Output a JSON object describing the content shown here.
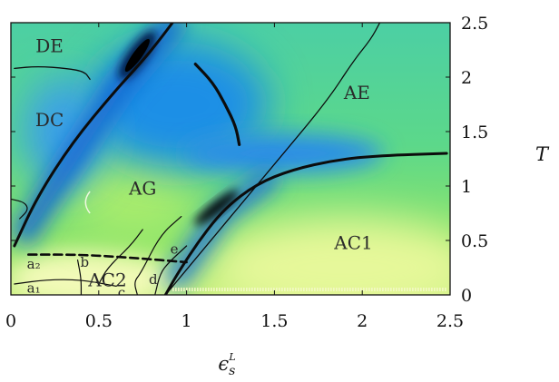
{
  "chart_data": {
    "type": "heatmap",
    "title": "",
    "xlabel": "ε_s^L",
    "ylabel": "T",
    "xlim": [
      0,
      2.5
    ],
    "ylim": [
      0,
      2.5
    ],
    "x_ticks": [
      0,
      0.5,
      1,
      1.5,
      2,
      2.5
    ],
    "x_tick_labels": [
      "0",
      "0.5",
      "1",
      "1.5",
      "2",
      "2.5"
    ],
    "y_ticks": [
      0,
      0.5,
      1,
      1.5,
      2,
      2.5
    ],
    "y_tick_labels": [
      "0",
      "0.5",
      "1",
      "1.5",
      "2",
      "2.5"
    ],
    "y_axis_side": "right",
    "grid": false,
    "legend": "none",
    "colormap": [
      "#ffffff",
      "#c8f080",
      "#7ee85a",
      "#3ccf96",
      "#1a8fe0",
      "#0a2a90",
      "#000000"
    ],
    "regions": [
      {
        "label": "DE",
        "x": 0.22,
        "y": 2.23
      },
      {
        "label": "DC",
        "x": 0.22,
        "y": 1.55
      },
      {
        "label": "AG",
        "x": 0.75,
        "y": 0.92
      },
      {
        "label": "AE",
        "x": 1.97,
        "y": 1.8
      },
      {
        "label": "AC1",
        "x": 1.95,
        "y": 0.42
      },
      {
        "label": "AC2",
        "x": 0.55,
        "y": 0.08
      },
      {
        "label": "a₁",
        "x": 0.13,
        "y": 0.02
      },
      {
        "label": "a₂",
        "x": 0.13,
        "y": 0.24
      },
      {
        "label": "b",
        "x": 0.42,
        "y": 0.26
      },
      {
        "label": "c",
        "x": 0.63,
        "y": -0.02
      },
      {
        "label": "d",
        "x": 0.81,
        "y": 0.1
      },
      {
        "label": "e",
        "x": 0.93,
        "y": 0.38
      }
    ],
    "boundaries": [
      {
        "name": "upper-boundary-thick",
        "width": 3,
        "points": [
          [
            0.02,
            0.45
          ],
          [
            0.15,
            0.9
          ],
          [
            0.35,
            1.4
          ],
          [
            0.58,
            1.85
          ],
          [
            0.75,
            2.15
          ],
          [
            0.85,
            2.35
          ],
          [
            0.92,
            2.5
          ]
        ]
      },
      {
        "name": "lower-boundary-thick",
        "width": 3,
        "points": [
          [
            0.88,
            0.0
          ],
          [
            0.95,
            0.2
          ],
          [
            1.08,
            0.52
          ],
          [
            1.22,
            0.8
          ],
          [
            1.4,
            1.02
          ],
          [
            1.6,
            1.15
          ],
          [
            1.85,
            1.24
          ],
          [
            2.1,
            1.28
          ],
          [
            2.48,
            1.3
          ]
        ]
      },
      {
        "name": "ae-boundary-thin",
        "width": 1.3,
        "points": [
          [
            0.88,
            0.0
          ],
          [
            1.2,
            0.62
          ],
          [
            1.5,
            1.2
          ],
          [
            1.8,
            1.78
          ],
          [
            1.95,
            2.15
          ],
          [
            2.05,
            2.35
          ],
          [
            2.1,
            2.5
          ]
        ]
      },
      {
        "name": "isolated-segment",
        "width": 3.2,
        "points": [
          [
            1.05,
            2.12
          ],
          [
            1.15,
            1.95
          ],
          [
            1.22,
            1.75
          ],
          [
            1.28,
            1.55
          ],
          [
            1.3,
            1.38
          ]
        ]
      },
      {
        "name": "de-dc-boundary",
        "width": 1.3,
        "points": [
          [
            0.02,
            2.08
          ],
          [
            0.15,
            2.1
          ],
          [
            0.32,
            2.08
          ],
          [
            0.42,
            2.05
          ],
          [
            0.45,
            1.98
          ]
        ]
      },
      {
        "name": "dashed-line",
        "width": 2.6,
        "dashed": true,
        "points": [
          [
            0.1,
            0.37
          ],
          [
            0.4,
            0.37
          ],
          [
            0.7,
            0.34
          ],
          [
            1.0,
            0.3
          ]
        ]
      },
      {
        "name": "a1-a2-line",
        "width": 1.2,
        "points": [
          [
            0.02,
            0.1
          ],
          [
            0.2,
            0.14
          ],
          [
            0.4,
            0.14
          ],
          [
            0.6,
            0.08
          ]
        ]
      },
      {
        "name": "ag-ac2-line",
        "width": 1.2,
        "points": [
          [
            0.5,
            0.1
          ],
          [
            0.55,
            0.25
          ],
          [
            0.68,
            0.45
          ],
          [
            0.75,
            0.6
          ]
        ]
      },
      {
        "name": "inner-line-1",
        "width": 1.2,
        "points": [
          [
            0.4,
            0.0
          ],
          [
            0.4,
            0.15
          ],
          [
            0.38,
            0.32
          ]
        ]
      },
      {
        "name": "inner-line-2",
        "width": 1.2,
        "points": [
          [
            0.72,
            0.0
          ],
          [
            0.7,
            0.12
          ],
          [
            0.74,
            0.2
          ],
          [
            0.85,
            0.55
          ],
          [
            0.97,
            0.72
          ]
        ]
      },
      {
        "name": "inner-line-3",
        "width": 1.2,
        "points": [
          [
            0.82,
            0.0
          ],
          [
            0.85,
            0.2
          ],
          [
            0.9,
            0.3
          ],
          [
            1.0,
            0.45
          ]
        ]
      },
      {
        "name": "left-wave",
        "width": 1.2,
        "points": [
          [
            0.0,
            0.88
          ],
          [
            0.08,
            0.85
          ],
          [
            0.1,
            0.78
          ],
          [
            0.05,
            0.7
          ]
        ]
      }
    ],
    "yellow_dashes": {
      "y": 0.05,
      "x_start": 0.92,
      "x_end": 2.48
    }
  }
}
